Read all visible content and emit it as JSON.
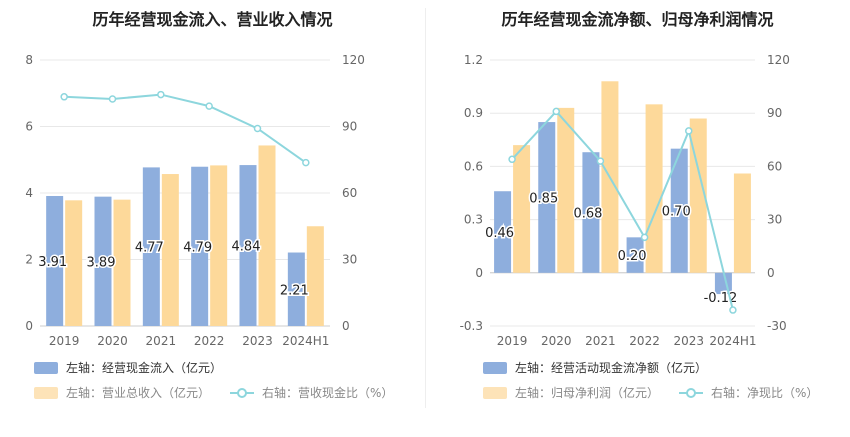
{
  "colors": {
    "primary_bar": "#8eaedd",
    "secondary_bar": "#fdd99a",
    "line": "#8dd6dd",
    "axis_text": "#666666",
    "grid": "#e8e8e8"
  },
  "chart_data": [
    {
      "type": "bar",
      "title": "历年经营现金流入、营业收入情况",
      "categories": [
        "2019",
        "2020",
        "2021",
        "2022",
        "2023",
        "2024H1"
      ],
      "left_axis": {
        "ylim": [
          0,
          8
        ],
        "ticks": [
          "0",
          "2",
          "4",
          "6",
          "8"
        ]
      },
      "right_axis": {
        "ylim": [
          0,
          120
        ],
        "ticks": [
          "0",
          "30",
          "60",
          "90",
          "120"
        ]
      },
      "series": [
        {
          "name": "左轴：经营现金流入（亿元）",
          "axis": "left",
          "kind": "bar",
          "values": [
            3.91,
            3.89,
            4.77,
            4.79,
            4.84,
            2.21
          ],
          "labels": [
            "3.91",
            "3.89",
            "4.77",
            "4.79",
            "4.84",
            "2.21"
          ]
        },
        {
          "name": "左轴：营业总收入（亿元）",
          "axis": "left",
          "kind": "bar",
          "values": [
            3.78,
            3.8,
            4.57,
            4.83,
            5.43,
            3.0
          ]
        },
        {
          "name": "右轴：营收现金比（%）",
          "axis": "right",
          "kind": "line",
          "values": [
            103.4,
            102.4,
            104.4,
            99.2,
            89.1,
            73.7
          ]
        }
      ]
    },
    {
      "type": "bar",
      "title": "历年经营现金流净额、归母净利润情况",
      "categories": [
        "2019",
        "2020",
        "2021",
        "2022",
        "2023",
        "2024H1"
      ],
      "left_axis": {
        "ylim": [
          -0.3,
          1.2
        ],
        "ticks": [
          "-0.3",
          "0",
          "0.3",
          "0.6",
          "0.9",
          "1.2"
        ]
      },
      "right_axis": {
        "ylim": [
          -30,
          120
        ],
        "ticks": [
          "-30",
          "0",
          "30",
          "60",
          "90",
          "120"
        ]
      },
      "series": [
        {
          "name": "左轴：经营活动现金流净额（亿元）",
          "axis": "left",
          "kind": "bar",
          "values": [
            0.46,
            0.85,
            0.68,
            0.2,
            0.7,
            -0.12
          ],
          "labels": [
            "0.46",
            "0.85",
            "0.68",
            "0.20",
            "0.70",
            "-0.12"
          ]
        },
        {
          "name": "左轴：归母净利润（亿元）",
          "axis": "left",
          "kind": "bar",
          "values": [
            0.72,
            0.93,
            1.08,
            0.95,
            0.87,
            0.56
          ]
        },
        {
          "name": "右轴：净现比（%）",
          "axis": "right",
          "kind": "line",
          "values": [
            64,
            91,
            63,
            20,
            80,
            -21
          ]
        }
      ]
    }
  ]
}
